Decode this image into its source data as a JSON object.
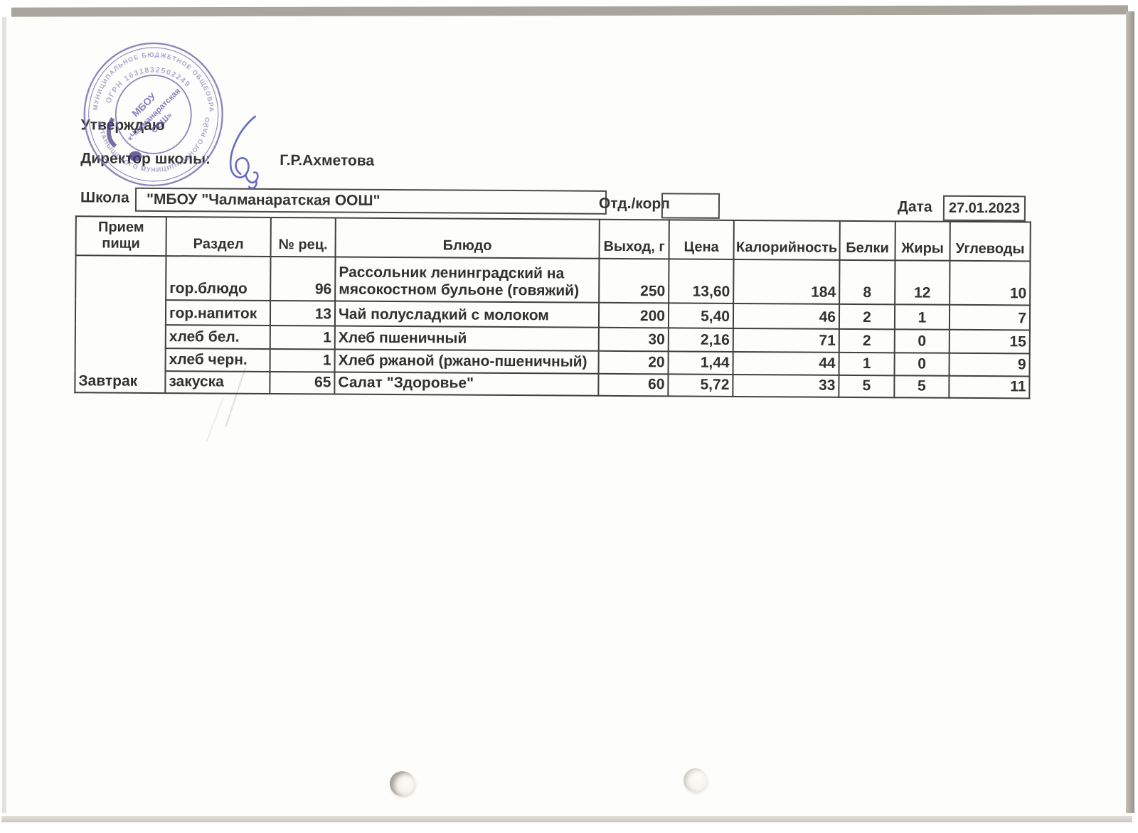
{
  "doc": {
    "approval": {
      "approve_label": "Утверждаю",
      "director_label": "Директор школы:",
      "director_name": "Г.Р.Ахметова"
    },
    "stamp": {
      "ring_text_top": "МУНИЦИПАЛЬНОЕ БЮДЖЕТНОЕ ОБЩЕОБРАЗОВАТЕЛЬНОЕ УЧРЕЖДЕНИЕ",
      "ring_text_bottom": "АКТАНЫШСКОГО МУНИЦИПАЛЬНОГО РАЙОНА РЕСПУБЛИКИ ТАТАРСТАН",
      "ogrn_text": "ОГРН 1631832502249",
      "center_line_1": "МБОУ",
      "center_line_2": "«Чалманаратская",
      "center_line_3": "ООШ»",
      "ink_color": "#8274b6"
    },
    "fields": {
      "school_label": "Школа",
      "school_value": "\"МБОУ \"Чалманаратская ООШ\"",
      "dept_label": "Отд./корп",
      "dept_value": "",
      "date_label": "Дата",
      "date_value": "27.01.2023"
    },
    "table": {
      "headers": [
        "Прием пищи",
        "Раздел",
        "№ рец.",
        "Блюдо",
        "Выход, г",
        "Цена",
        "Калорийность",
        "Белки",
        "Жиры",
        "Углеводы"
      ],
      "meal": "Завтрак",
      "rows": [
        {
          "section": "гор.блюдо",
          "rec": "96",
          "dish": "Рассольник ленинградский на мясокостном бульоне (говяжий)",
          "out": "250",
          "price": "13,60",
          "kcal": "184",
          "protein": "8",
          "fat": "12",
          "carbs": "10"
        },
        {
          "section": "гор.напиток",
          "rec": "13",
          "dish": "Чай полусладкий с молоком",
          "out": "200",
          "price": "5,40",
          "kcal": "46",
          "protein": "2",
          "fat": "1",
          "carbs": "7"
        },
        {
          "section": "хлеб бел.",
          "rec": "1",
          "dish": "Хлеб пшеничный",
          "out": "30",
          "price": "2,16",
          "kcal": "71",
          "protein": "2",
          "fat": "0",
          "carbs": "15"
        },
        {
          "section": "хлеб черн.",
          "rec": "1",
          "dish": "Хлеб ржаной (ржано-пшеничный)",
          "out": "20",
          "price": "1,44",
          "kcal": "44",
          "protein": "1",
          "fat": "0",
          "carbs": "9"
        },
        {
          "section": "закуска",
          "rec": "65",
          "dish": "Салат \"Здоровье\"",
          "out": "60",
          "price": "5,72",
          "kcal": "33",
          "protein": "5",
          "fat": "5",
          "carbs": "11"
        }
      ]
    }
  }
}
